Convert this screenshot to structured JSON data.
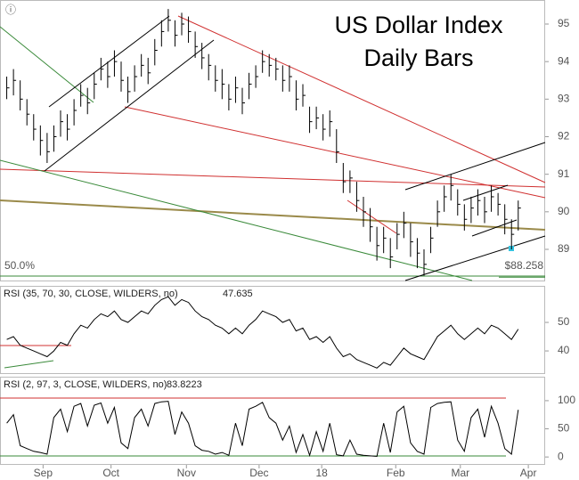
{
  "chart_data": [
    {
      "type": "ohlc",
      "title": "US Dollar Index",
      "subtitle": "Daily Bars",
      "annotation": "50.0%",
      "price_label": {
        "value": 88.258,
        "label": "$88.258"
      },
      "color": "#000000",
      "xlim": [
        -1,
        80
      ],
      "ylim": [
        88.17,
        95.64
      ],
      "yticks": [
        89,
        90,
        91,
        92,
        93,
        94,
        95
      ],
      "close": [
        93.3,
        93.5,
        93.0,
        92.6,
        92.2,
        91.9,
        91.6,
        92.0,
        92.4,
        92.2,
        92.7,
        93.1,
        92.9,
        93.4,
        93.8,
        93.6,
        94.0,
        93.5,
        93.2,
        93.6,
        93.9,
        93.7,
        94.3,
        94.8,
        95.1,
        94.7,
        95.0,
        94.8,
        94.4,
        94.1,
        93.9,
        93.5,
        93.4,
        93.0,
        93.3,
        92.9,
        93.4,
        93.6,
        94.0,
        93.9,
        93.8,
        93.5,
        93.6,
        93.0,
        93.1,
        92.4,
        92.5,
        92.2,
        92.4,
        91.6,
        90.8,
        90.9,
        90.3,
        90.0,
        89.6,
        89.1,
        89.3,
        88.8,
        89.4,
        89.7,
        89.2,
        88.9,
        88.6,
        89.3,
        90.0,
        90.4,
        90.7,
        90.2,
        89.8,
        90.1,
        90.3,
        90.0,
        90.4,
        90.2,
        89.8,
        89.4,
        90.1
      ],
      "high": [
        93.6,
        93.8,
        93.5,
        93.0,
        92.6,
        92.3,
        92.1,
        92.3,
        92.7,
        92.6,
        93.0,
        93.4,
        93.3,
        93.7,
        94.1,
        94.0,
        94.3,
        94.0,
        93.6,
        93.9,
        94.2,
        94.1,
        94.6,
        95.1,
        95.4,
        95.1,
        95.3,
        95.2,
        94.8,
        94.5,
        94.2,
        93.9,
        93.8,
        93.4,
        93.6,
        93.3,
        93.7,
        93.9,
        94.3,
        94.2,
        94.1,
        93.9,
        93.9,
        93.5,
        93.4,
        92.8,
        92.8,
        92.6,
        92.7,
        92.2,
        91.3,
        91.1,
        90.8,
        90.4,
        90.1,
        89.6,
        89.6,
        89.3,
        89.7,
        90.0,
        89.7,
        89.3,
        89.0,
        89.6,
        90.3,
        90.7,
        91.0,
        90.6,
        90.2,
        90.4,
        90.6,
        90.4,
        90.7,
        90.5,
        90.2,
        89.8,
        90.3
      ],
      "low": [
        93.0,
        93.1,
        92.7,
        92.3,
        91.9,
        91.5,
        91.3,
        91.6,
        92.0,
        91.9,
        92.3,
        92.8,
        92.6,
        93.0,
        93.5,
        93.3,
        93.6,
        93.2,
        92.9,
        93.2,
        93.6,
        93.4,
        93.9,
        94.4,
        94.8,
        94.4,
        94.7,
        94.5,
        94.1,
        93.8,
        93.5,
        93.2,
        93.0,
        92.7,
        92.9,
        92.6,
        93.0,
        93.3,
        93.7,
        93.6,
        93.5,
        93.2,
        93.2,
        92.7,
        92.8,
        92.1,
        92.2,
        91.9,
        92.0,
        91.3,
        90.5,
        90.5,
        90.0,
        89.6,
        89.2,
        88.7,
        88.9,
        88.5,
        89.0,
        89.3,
        88.8,
        88.5,
        88.3,
        88.9,
        89.6,
        90.0,
        90.3,
        89.9,
        89.5,
        89.7,
        89.9,
        89.7,
        90.0,
        89.9,
        89.4,
        89.0,
        89.5
      ]
    },
    {
      "type": "line",
      "xlim": [
        -1,
        80
      ],
      "ylim": [
        31.9,
        62.5
      ],
      "yticks": [
        40,
        50
      ],
      "series": [
        {
          "name": "RSI (35, 70, 30, CLOSE, WILDERS, no)",
          "color": "#000000",
          "last": 47.635,
          "values": [
            44,
            45,
            42,
            41,
            40,
            39,
            38,
            40,
            43,
            42,
            46,
            49,
            48,
            51,
            53,
            52,
            54,
            51,
            50,
            52,
            54,
            53,
            56,
            58,
            59,
            56,
            58,
            57,
            54,
            52,
            51,
            49,
            48,
            46,
            48,
            46,
            49,
            51,
            54,
            53,
            52,
            50,
            51,
            47,
            48,
            44,
            45,
            43,
            45,
            41,
            38,
            39,
            37,
            36,
            35,
            34,
            36,
            35,
            38,
            41,
            39,
            38,
            37,
            41,
            45,
            47,
            49,
            46,
            44,
            46,
            48,
            46,
            49,
            48,
            46,
            44,
            47.635
          ]
        }
      ]
    },
    {
      "type": "line",
      "xlim": [
        -1,
        80
      ],
      "ylim": [
        -14,
        141
      ],
      "yticks": [
        0,
        50,
        100
      ],
      "xticks": [
        {
          "value": 5.4,
          "label": "Sep"
        },
        {
          "value": 15.5,
          "label": "Oct"
        },
        {
          "value": 26.7,
          "label": "Nov"
        },
        {
          "value": 37.5,
          "label": "Dec"
        },
        {
          "value": 46.8,
          "label": "18"
        },
        {
          "value": 57.8,
          "label": "Feb"
        },
        {
          "value": 67.4,
          "label": "Mar"
        },
        {
          "value": 77.5,
          "label": "Apr"
        }
      ],
      "series": [
        {
          "name": "RSI (2, 97, 3, CLOSE, WILDERS, no)",
          "color": "#000000",
          "last": 83.8223,
          "values": [
            60,
            75,
            20,
            15,
            10,
            8,
            5,
            70,
            85,
            45,
            90,
            95,
            55,
            92,
            96,
            60,
            88,
            25,
            15,
            70,
            85,
            55,
            95,
            98,
            99,
            40,
            80,
            60,
            20,
            12,
            10,
            5,
            8,
            3,
            60,
            20,
            85,
            90,
            97,
            70,
            60,
            30,
            55,
            8,
            40,
            3,
            45,
            10,
            60,
            4,
            2,
            30,
            5,
            3,
            2,
            1,
            60,
            8,
            80,
            90,
            25,
            10,
            5,
            88,
            95,
            97,
            98,
            30,
            10,
            70,
            85,
            35,
            90,
            60,
            15,
            5,
            83.8223
          ]
        }
      ]
    }
  ]
}
